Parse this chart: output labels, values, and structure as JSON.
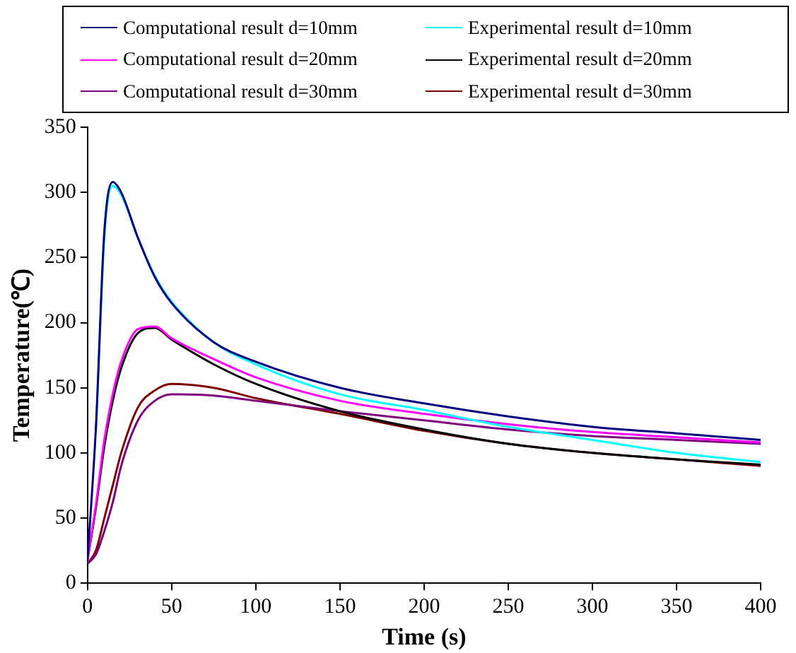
{
  "chart_data": {
    "type": "line",
    "xlabel": "Time (s)",
    "ylabel": "Temperature(℃)",
    "xlim": [
      0,
      400
    ],
    "xticks": [
      0,
      50,
      100,
      150,
      200,
      250,
      300,
      350,
      400
    ],
    "ylim": [
      0,
      350
    ],
    "yticks": [
      0,
      50,
      100,
      150,
      200,
      250,
      300,
      350
    ],
    "grid": false,
    "legend": "top",
    "marker": "none",
    "line_style": "solid",
    "x": [
      0,
      5,
      10,
      15,
      20,
      30,
      40,
      50,
      75,
      100,
      150,
      200,
      250,
      300,
      350,
      400
    ],
    "series": [
      {
        "name": "Computational result d=10mm",
        "color": "#000080",
        "values": [
          18,
          120,
          270,
          308,
          300,
          265,
          235,
          215,
          185,
          170,
          150,
          138,
          128,
          120,
          115,
          110
        ]
      },
      {
        "name": "Experimental result d=10mm",
        "color": "#00ffff",
        "values": [
          null,
          115,
          265,
          305,
          298,
          265,
          236,
          216,
          185,
          168,
          145,
          133,
          120,
          110,
          100,
          93
        ]
      },
      {
        "name": "Computational result d=20mm",
        "color": "#ff00ff",
        "values": [
          18,
          60,
          110,
          145,
          170,
          195,
          197,
          188,
          172,
          158,
          140,
          130,
          122,
          116,
          112,
          108
        ]
      },
      {
        "name": "Experimental result d=20mm",
        "color": "#000000",
        "values": [
          18,
          58,
          105,
          140,
          165,
          192,
          196,
          187,
          168,
          153,
          132,
          118,
          107,
          100,
          95,
          91
        ]
      },
      {
        "name": "Computational result d=30mm",
        "color": "#800080",
        "values": [
          15,
          22,
          40,
          62,
          90,
          125,
          140,
          145,
          144,
          140,
          132,
          125,
          118,
          113,
          110,
          107
        ]
      },
      {
        "name": "Experimental result d=30mm",
        "color": "#800000",
        "values": [
          15,
          25,
          50,
          75,
          100,
          135,
          148,
          153,
          150,
          142,
          130,
          117,
          107,
          100,
          95,
          90
        ]
      }
    ]
  }
}
